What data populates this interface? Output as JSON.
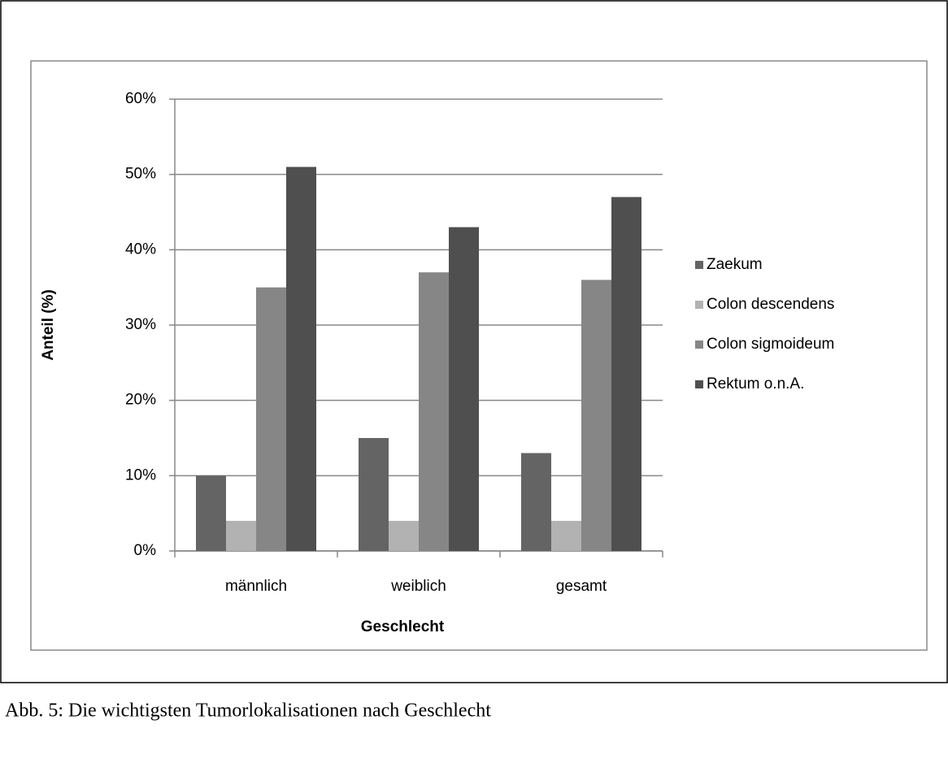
{
  "chart_data": {
    "type": "bar",
    "categories": [
      "männlich",
      "weiblich",
      "gesamt"
    ],
    "series": [
      {
        "name": "Zaekum",
        "color": "#646464",
        "values": [
          10,
          15,
          13
        ]
      },
      {
        "name": "Colon descendens",
        "color": "#b2b2b2",
        "values": [
          4,
          4,
          4
        ]
      },
      {
        "name": "Colon sigmoideum",
        "color": "#868686",
        "values": [
          35,
          37,
          36
        ]
      },
      {
        "name": "Rektum o.n.A.",
        "color": "#4f4f4f",
        "values": [
          51,
          43,
          47
        ]
      }
    ],
    "ylim": [
      0,
      60
    ],
    "yticks": [
      {
        "value": 0,
        "label": "0%"
      },
      {
        "value": 10,
        "label": "10%"
      },
      {
        "value": 20,
        "label": "20%"
      },
      {
        "value": 30,
        "label": "30%"
      },
      {
        "value": 40,
        "label": "40%"
      },
      {
        "value": 50,
        "label": "50%"
      },
      {
        "value": 60,
        "label": "60%"
      }
    ],
    "grid": true,
    "x_label": "Geschlecht",
    "y_label": "Anteil (%)",
    "legend": "right"
  },
  "caption": "Abb. 5: Die wichtigsten Tumorlokalisationen nach Geschlecht"
}
